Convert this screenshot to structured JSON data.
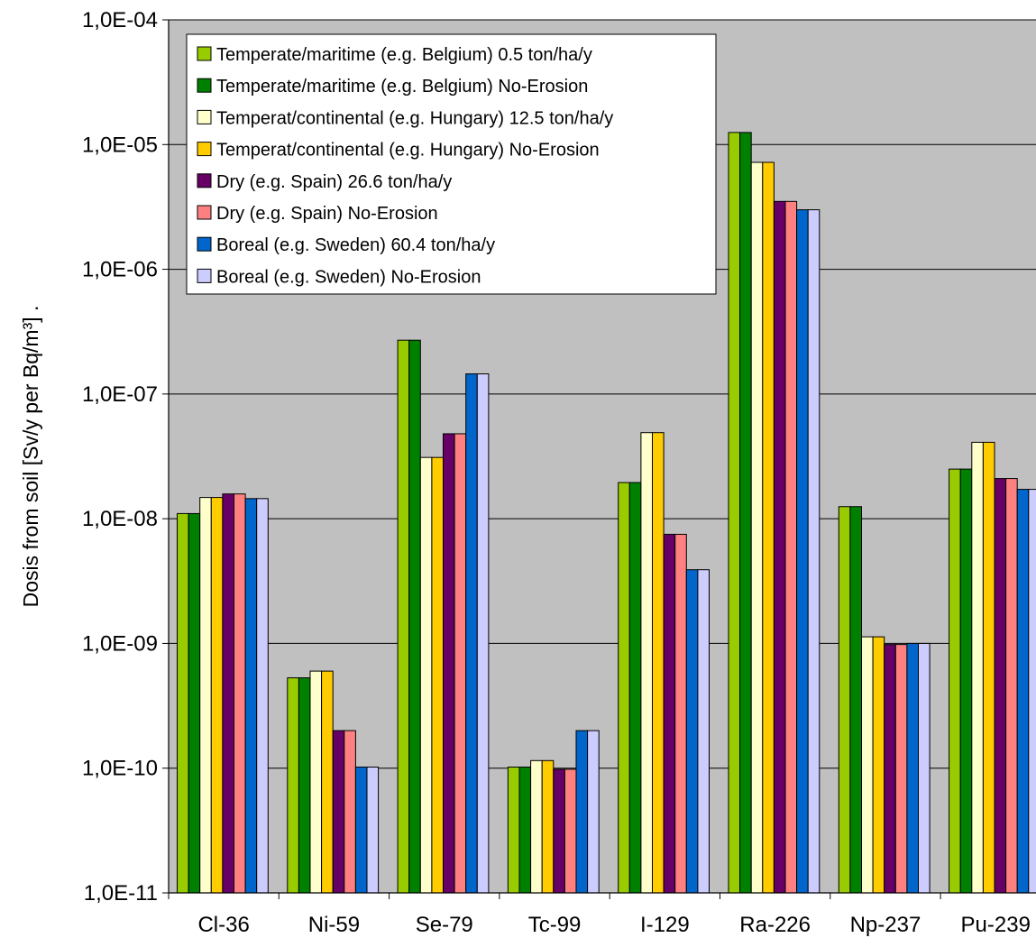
{
  "chart_data": {
    "type": "bar",
    "title": "",
    "xlabel": "",
    "ylabel": "Dosis from soil [Sv/y per Bq/m³] .",
    "yscale": "log",
    "ylim": [
      1e-11,
      0.0001
    ],
    "grid": true,
    "legend_position": "top-left",
    "plot_background": "#c0c0c0",
    "categories": [
      "Cl-36",
      "Ni-59",
      "Se-79",
      "Tc-99",
      "I-129",
      "Ra-226",
      "Np-237",
      "Pu-239"
    ],
    "y_tick_labels": [
      "1,0E-11",
      "1,0E-10",
      "1,0E-09",
      "1,0E-08",
      "1,0E-07",
      "1,0E-06",
      "1,0E-05",
      "1,0E-04"
    ],
    "series": [
      {
        "name": "Temperate/maritime (e.g. Belgium) 0.5 ton/ha/y",
        "color": "#99cc00",
        "values": [
          1.1e-08,
          5.3e-10,
          2.7e-07,
          1.02e-10,
          1.95e-08,
          1.25e-05,
          1.25e-08,
          2.5e-08
        ]
      },
      {
        "name": "Temperate/maritime (e.g. Belgium) No-Erosion",
        "color": "#008000",
        "values": [
          1.1e-08,
          5.3e-10,
          2.7e-07,
          1.02e-10,
          1.95e-08,
          1.25e-05,
          1.25e-08,
          2.5e-08
        ]
      },
      {
        "name": "Temperat/continental (e.g. Hungary) 12.5 ton/ha/y",
        "color": "#ffffcc",
        "values": [
          1.48e-08,
          6e-10,
          3.1e-08,
          1.15e-10,
          4.9e-08,
          7.2e-06,
          1.13e-09,
          4.1e-08
        ]
      },
      {
        "name": "Temperat/continental (e.g. Hungary) No-Erosion",
        "color": "#ffcc00",
        "values": [
          1.48e-08,
          6e-10,
          3.1e-08,
          1.15e-10,
          4.9e-08,
          7.2e-06,
          1.13e-09,
          4.1e-08
        ]
      },
      {
        "name": "Dry (e.g. Spain) 26.6 ton/ha/y",
        "color": "#660066",
        "values": [
          1.58e-08,
          2e-10,
          4.8e-08,
          9.8e-11,
          7.5e-09,
          3.5e-06,
          9.8e-10,
          2.1e-08
        ]
      },
      {
        "name": "Dry (e.g. Spain) No-Erosion",
        "color": "#ff8080",
        "values": [
          1.58e-08,
          2e-10,
          4.8e-08,
          9.8e-11,
          7.5e-09,
          3.5e-06,
          9.8e-10,
          2.1e-08
        ]
      },
      {
        "name": "Boreal (e.g. Sweden) 60.4 ton/ha/y",
        "color": "#0066cc",
        "values": [
          1.45e-08,
          1.02e-10,
          1.45e-07,
          2e-10,
          3.9e-09,
          3e-06,
          1e-09,
          1.72e-08
        ]
      },
      {
        "name": "Boreal (e.g. Sweden) No-Erosion",
        "color": "#ccccff",
        "values": [
          1.45e-08,
          1.02e-10,
          1.45e-07,
          2e-10,
          3.9e-09,
          3e-06,
          1e-09,
          1.72e-08
        ]
      }
    ]
  }
}
